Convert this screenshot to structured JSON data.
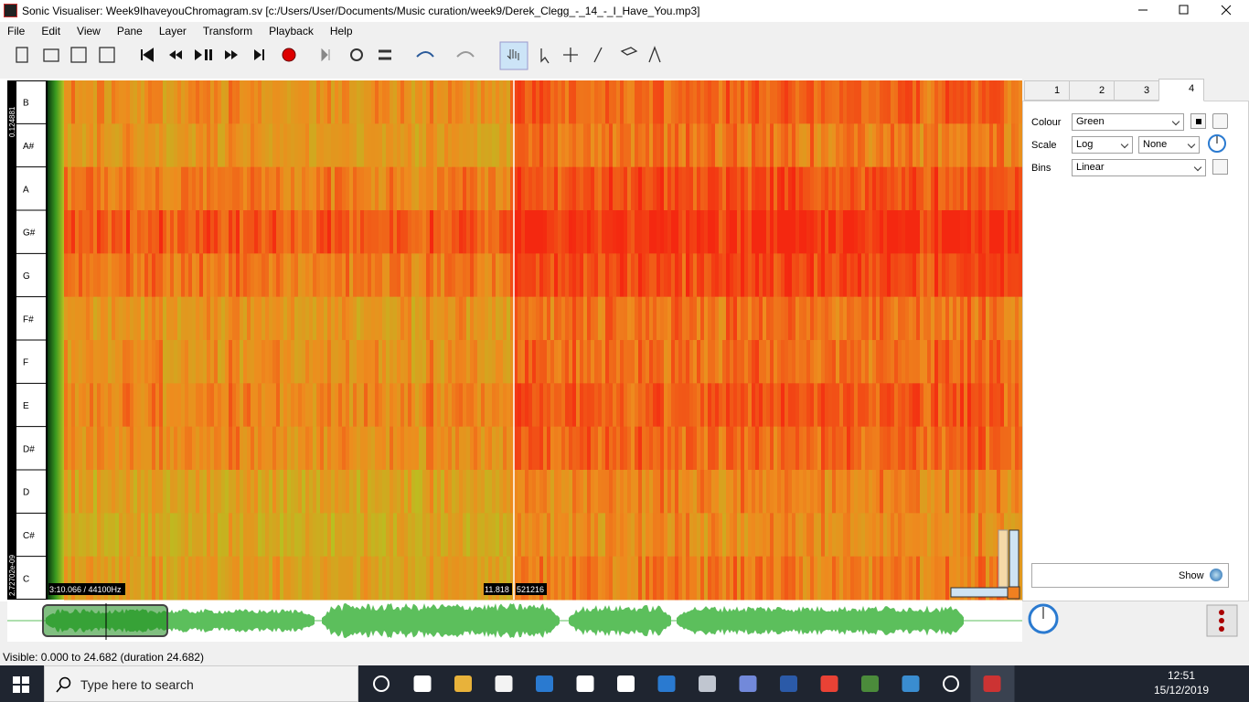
{
  "window": {
    "title": "Sonic Visualiser: Week9IhaveyouChromagram.sv [c:/Users/User/Documents/Music curation/week9/Derek_Clegg_-_14_-_I_Have_You.mp3]"
  },
  "menu": [
    "File",
    "Edit",
    "View",
    "Pane",
    "Layer",
    "Transform",
    "Playback",
    "Help"
  ],
  "pitch_labels": [
    "B",
    "A#",
    "A",
    "G#",
    "G",
    "F#",
    "F",
    "E",
    "D#",
    "D",
    "C#",
    "C"
  ],
  "scale_labels": [
    "0.124881",
    "2.72702e-09"
  ],
  "overlay": {
    "time": "3:10.066 / 44100Hz",
    "position": "11.818",
    "frame": "521216"
  },
  "tabs": [
    "1",
    "2",
    "3",
    "4"
  ],
  "properties": {
    "colour_label": "Colour",
    "colour": "Green",
    "scale_label": "Scale",
    "scale": "Log",
    "normalize": "None",
    "bins_label": "Bins",
    "bins": "Linear"
  },
  "show_button": "Show",
  "status": "Visible: 0.000 to 24.682 (duration 24.682)",
  "taskbar": {
    "search": "Type here to search",
    "time": "12:51",
    "date": "15/12/2019"
  }
}
